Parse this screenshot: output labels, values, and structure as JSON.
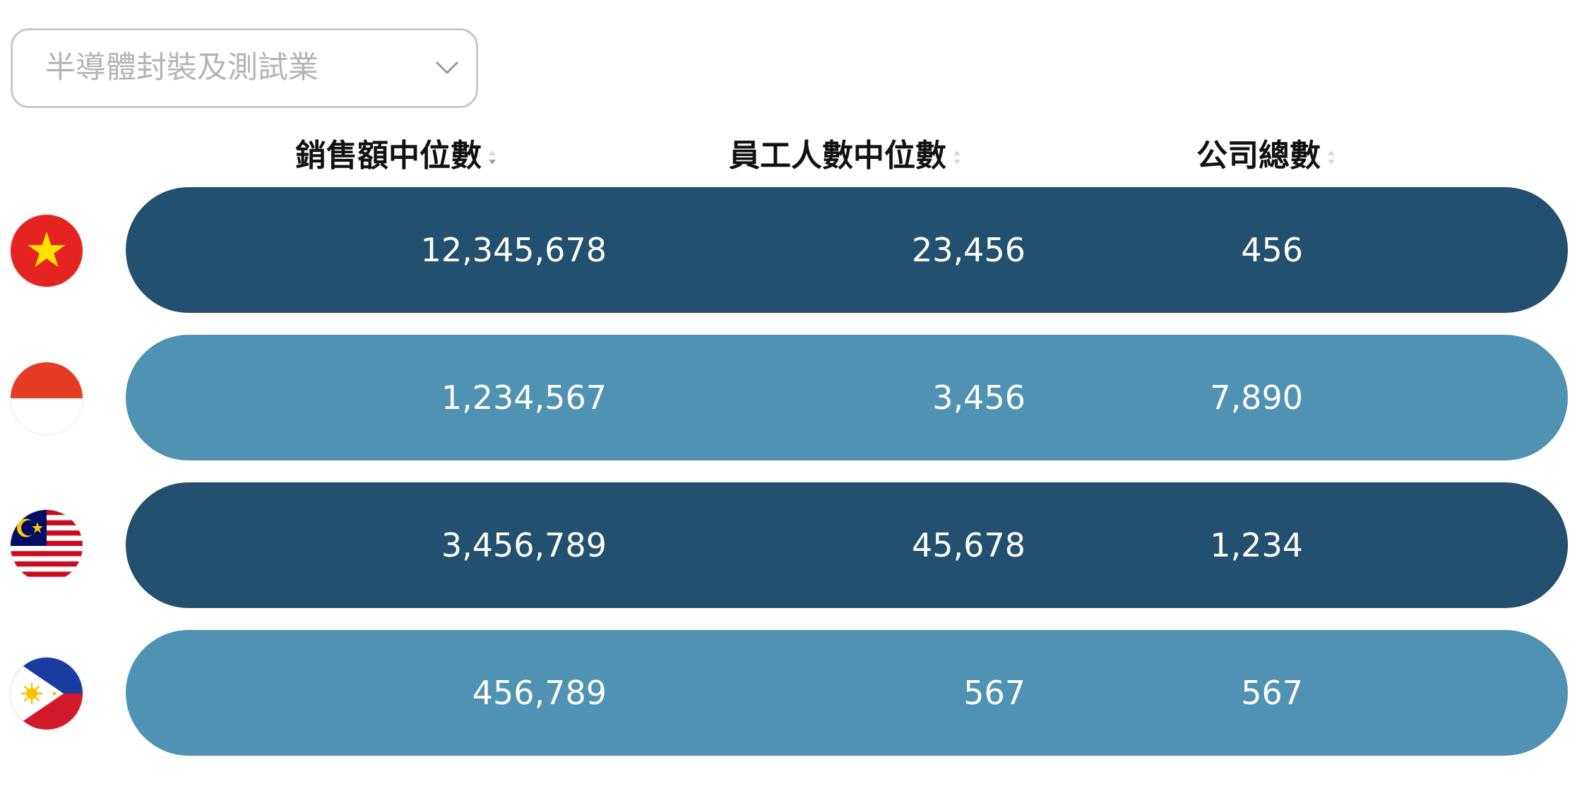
{
  "filter": {
    "selected": "半導體封裝及測試業",
    "icon": "chevron-down-icon"
  },
  "columns": [
    {
      "label": "銷售額中位數"
    },
    {
      "label": "員工人數中位數"
    },
    {
      "label": "公司總數"
    }
  ],
  "colors": {
    "row_dark": "#22506e",
    "row_light": "#4f92b1",
    "text_on_row": "#ffffff",
    "dropdown_border": "#c7c7c7",
    "dropdown_text": "#b4b4b4"
  },
  "rows": [
    {
      "flag": "vietnam-flag-icon",
      "sales": "12,345,678",
      "employees": "23,456",
      "companies": "456"
    },
    {
      "flag": "indonesia-flag-icon",
      "sales": "1,234,567",
      "employees": "3,456",
      "companies": "7,890"
    },
    {
      "flag": "malaysia-flag-icon",
      "sales": "3,456,789",
      "employees": "45,678",
      "companies": "1,234"
    },
    {
      "flag": "philippines-flag-icon",
      "sales": "456,789",
      "employees": "567",
      "companies": "567"
    }
  ]
}
